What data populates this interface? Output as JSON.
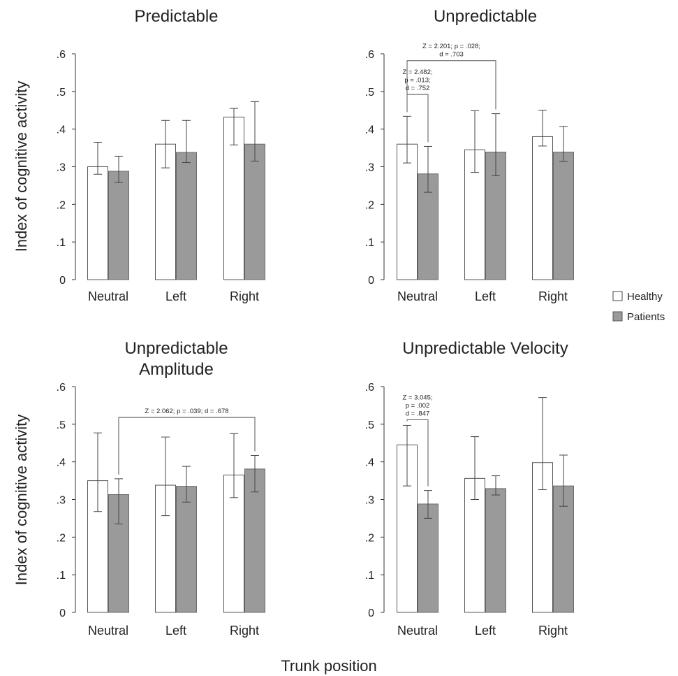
{
  "figure": {
    "xlabel": "Trunk position",
    "ylabel": "Index of cognitive activity",
    "legend": [
      {
        "name": "Healthy",
        "color": "#ffffff"
      },
      {
        "name": "Patients",
        "color": "#9a9a9a"
      }
    ],
    "legend_placement": "right"
  },
  "chart_data": [
    {
      "type": "bar",
      "title": [
        "Predictable"
      ],
      "categories": [
        "Neutral",
        "Left",
        "Right"
      ],
      "ylim": [
        0,
        0.6
      ],
      "yticks": [
        "0",
        ".1",
        ".2",
        ".3",
        ".4",
        ".5",
        ".6"
      ],
      "series": [
        {
          "name": "Healthy",
          "values": [
            0.3,
            0.36,
            0.432
          ],
          "err_low": [
            0.28,
            0.297,
            0.358
          ],
          "err_high": [
            0.365,
            0.423,
            0.455
          ]
        },
        {
          "name": "Patients",
          "values": [
            0.288,
            0.338,
            0.36
          ],
          "err_low": [
            0.258,
            0.311,
            0.315
          ],
          "err_high": [
            0.328,
            0.423,
            0.473
          ]
        }
      ],
      "annotations": []
    },
    {
      "type": "bar",
      "title": [
        "Unpredictable"
      ],
      "categories": [
        "Neutral",
        "Left",
        "Right"
      ],
      "ylim": [
        0,
        0.6
      ],
      "yticks": [
        "0",
        ".1",
        ".2",
        ".3",
        ".4",
        ".5",
        ".6"
      ],
      "series": [
        {
          "name": "Healthy",
          "values": [
            0.36,
            0.345,
            0.38
          ],
          "err_low": [
            0.31,
            0.285,
            0.355
          ],
          "err_high": [
            0.434,
            0.449,
            0.45
          ]
        },
        {
          "name": "Patients",
          "values": [
            0.281,
            0.339,
            0.339
          ],
          "err_low": [
            0.232,
            0.276,
            0.314
          ],
          "err_high": [
            0.354,
            0.441,
            0.407
          ]
        }
      ],
      "annotations": [
        {
          "lines": [
            "Z = 2.201; p = .028;",
            "d = .703"
          ],
          "from": [
            0,
            0
          ],
          "to": [
            1,
            1
          ],
          "y": 0.582
        },
        {
          "lines": [
            "Z = 2.482;",
            "p = .013;",
            "d = .752"
          ],
          "from": [
            0,
            0
          ],
          "to": [
            0,
            1
          ],
          "y": 0.492
        }
      ]
    },
    {
      "type": "bar",
      "title": [
        "Unpredictable",
        "Amplitude"
      ],
      "categories": [
        "Neutral",
        "Left",
        "Right"
      ],
      "ylim": [
        0,
        0.6
      ],
      "yticks": [
        "0",
        ".1",
        ".2",
        ".3",
        ".4",
        ".5",
        ".6"
      ],
      "series": [
        {
          "name": "Healthy",
          "values": [
            0.35,
            0.338,
            0.365
          ],
          "err_low": [
            0.268,
            0.257,
            0.305
          ],
          "err_high": [
            0.477,
            0.466,
            0.475
          ]
        },
        {
          "name": "Patients",
          "values": [
            0.313,
            0.335,
            0.381
          ],
          "err_low": [
            0.235,
            0.293,
            0.32
          ],
          "err_high": [
            0.355,
            0.388,
            0.417
          ]
        }
      ],
      "annotations": [
        {
          "lines": [
            "Z = 2.062; p = .039; d = .678"
          ],
          "from": [
            0,
            1
          ],
          "to": [
            2,
            1
          ],
          "y": 0.518
        }
      ]
    },
    {
      "type": "bar",
      "title": [
        "Unpredictable Velocity"
      ],
      "categories": [
        "Neutral",
        "Left",
        "Right"
      ],
      "ylim": [
        0,
        0.6
      ],
      "yticks": [
        "0",
        ".1",
        ".2",
        ".3",
        ".4",
        ".5",
        ".6"
      ],
      "series": [
        {
          "name": "Healthy",
          "values": [
            0.445,
            0.356,
            0.398
          ],
          "err_low": [
            0.336,
            0.3,
            0.326
          ],
          "err_high": [
            0.497,
            0.467,
            0.571
          ]
        },
        {
          "name": "Patients",
          "values": [
            0.288,
            0.329,
            0.336
          ],
          "err_low": [
            0.25,
            0.312,
            0.282
          ],
          "err_high": [
            0.324,
            0.363,
            0.418
          ]
        }
      ],
      "annotations": [
        {
          "lines": [
            "Z = 3.045;",
            "p = .002",
            "d = .847"
          ],
          "from": [
            0,
            0
          ],
          "to": [
            0,
            1
          ],
          "y": 0.512
        }
      ]
    }
  ]
}
